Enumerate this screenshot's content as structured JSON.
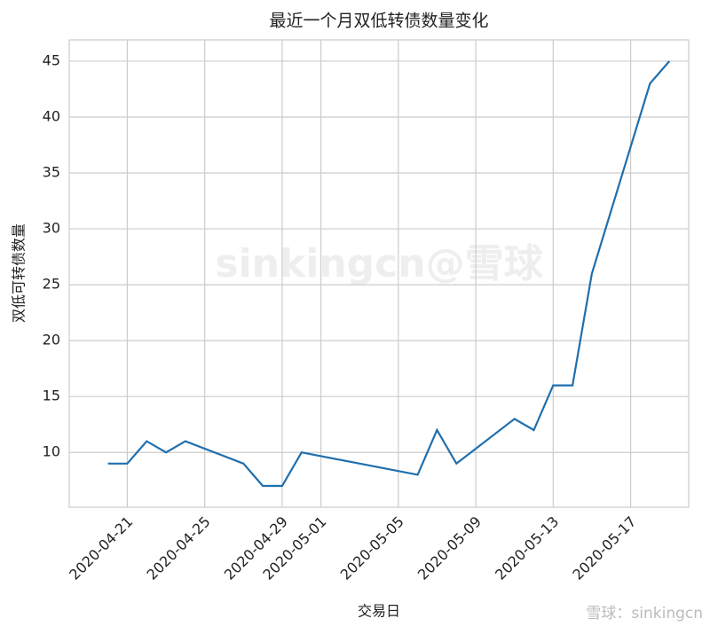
{
  "chart_data": {
    "type": "line",
    "title": "最近一个月双低转债数量变化",
    "x_label": "交易日",
    "y_label": "双低可转债数量",
    "watermark": "sinkingcn@雪球",
    "footer_watermark": "雪球：sinkingcn",
    "x": [
      "2020-04-20",
      "2020-04-21",
      "2020-04-22",
      "2020-04-23",
      "2020-04-24",
      "2020-04-27",
      "2020-04-28",
      "2020-04-29",
      "2020-04-30",
      "2020-05-06",
      "2020-05-07",
      "2020-05-08",
      "2020-05-11",
      "2020-05-12",
      "2020-05-13",
      "2020-05-14",
      "2020-05-15",
      "2020-05-18",
      "2020-05-19"
    ],
    "series": [
      {
        "name": "双低可转债数量",
        "color": "#1f6fad",
        "values": [
          9,
          9,
          11,
          10,
          11,
          9,
          7,
          7,
          10,
          8,
          12,
          9,
          13,
          12,
          16,
          16,
          26,
          43,
          45
        ]
      }
    ],
    "xlim": [
      "2020-04-18",
      "2020-05-20"
    ],
    "xticks": [
      "2020-04-21",
      "2020-04-25",
      "2020-04-29",
      "2020-05-01",
      "2020-05-05",
      "2020-05-09",
      "2020-05-13",
      "2020-05-17"
    ],
    "ylim": [
      5.1,
      46.9
    ],
    "yticks": [
      10,
      15,
      20,
      25,
      30,
      35,
      40,
      45
    ],
    "grid": true
  }
}
